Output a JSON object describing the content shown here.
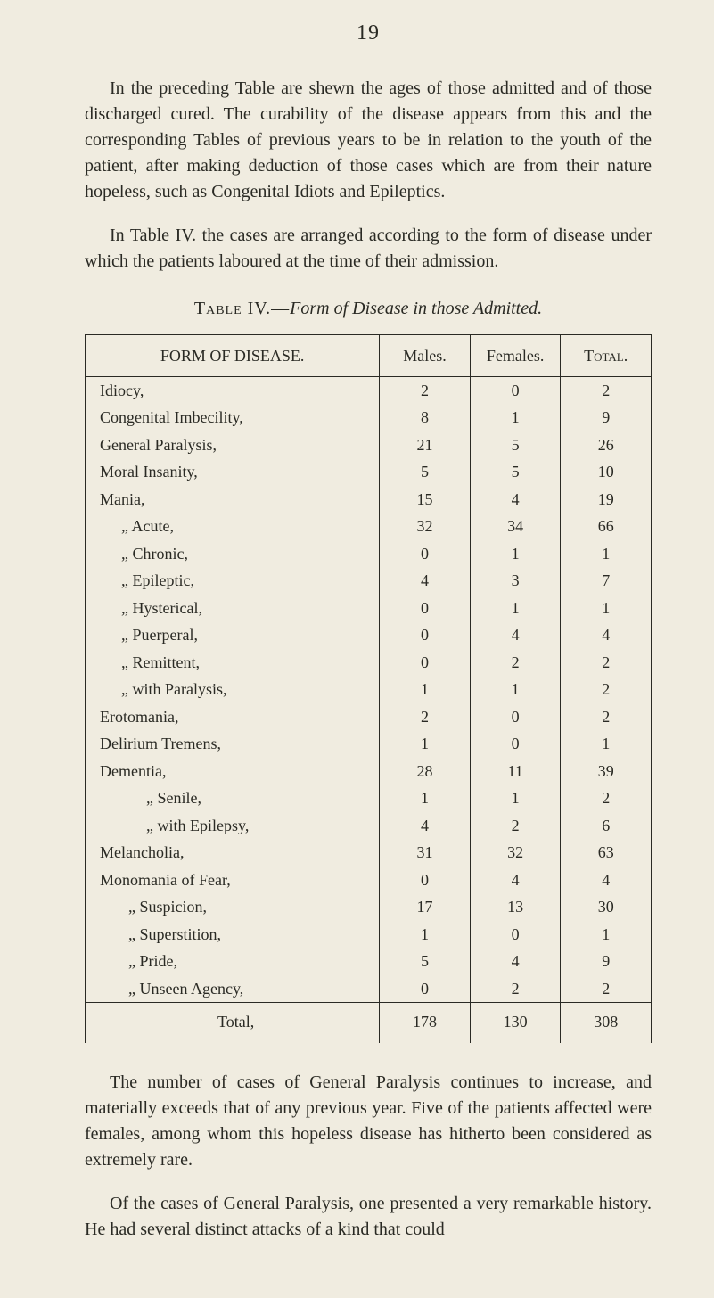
{
  "page_number": "19",
  "paragraphs": {
    "p1": "In the preceding Table are shewn the ages of those admitted and of those discharged cured. The curability of the disease appears from this and the corresponding Tables of previous years to be in relation to the youth of the patient, after making deduction of those cases which are from their nature hopeless, such as Congenital Idiots and Epileptics.",
    "p2": "In Table IV. the cases are arranged according to the form of disease under which the patients laboured at the time of their admission.",
    "p3": "The number of cases of General Paralysis continues to increase, and materially exceeds that of any previous year. Five of the patients affected were females, among whom this hopeless disease has hitherto been considered as extremely rare.",
    "p4": "Of the cases of General Paralysis, one presented a very remark­able history. He had several distinct attacks of a kind that could"
  },
  "table_title": {
    "leader": "Table IV.—",
    "rest": "Form of Disease in those Admitted."
  },
  "table": {
    "columns": {
      "form": "FORM OF DISEASE.",
      "males": "Males.",
      "females": "Females.",
      "total": "Total."
    },
    "rows": [
      {
        "label": "Idiocy,",
        "males": "2",
        "females": "0",
        "total": "2",
        "cls": ""
      },
      {
        "label": "Congenital Imbecility,",
        "males": "8",
        "females": "1",
        "total": "9",
        "cls": ""
      },
      {
        "label": "General Paralysis,",
        "males": "21",
        "females": "5",
        "total": "26",
        "cls": ""
      },
      {
        "label": "Moral Insanity,",
        "males": "5",
        "females": "5",
        "total": "10",
        "cls": ""
      },
      {
        "label": "Mania,",
        "males": "15",
        "females": "4",
        "total": "19",
        "cls": ""
      },
      {
        "label": "„  Acute,",
        "males": "32",
        "females": "34",
        "total": "66",
        "cls": "indent1"
      },
      {
        "label": "„  Chronic,",
        "males": "0",
        "females": "1",
        "total": "1",
        "cls": "indent1"
      },
      {
        "label": "„  Epileptic,",
        "males": "4",
        "females": "3",
        "total": "7",
        "cls": "indent1"
      },
      {
        "label": "„  Hysterical,",
        "males": "0",
        "females": "1",
        "total": "1",
        "cls": "indent1"
      },
      {
        "label": "„  Puerperal,",
        "males": "0",
        "females": "4",
        "total": "4",
        "cls": "indent1"
      },
      {
        "label": "„  Remittent,",
        "males": "0",
        "females": "2",
        "total": "2",
        "cls": "indent1"
      },
      {
        "label": "„  with Paralysis,",
        "males": "1",
        "females": "1",
        "total": "2",
        "cls": "indent1"
      },
      {
        "label": "Erotomania,",
        "males": "2",
        "females": "0",
        "total": "2",
        "cls": ""
      },
      {
        "label": "Delirium Tremens,",
        "males": "1",
        "females": "0",
        "total": "1",
        "cls": ""
      },
      {
        "label": "Dementia,",
        "males": "28",
        "females": "11",
        "total": "39",
        "cls": ""
      },
      {
        "label": "„  Senile,",
        "males": "1",
        "females": "1",
        "total": "2",
        "cls": "indent2"
      },
      {
        "label": "„  with Epilepsy,",
        "males": "4",
        "females": "2",
        "total": "6",
        "cls": "indent2"
      },
      {
        "label": "Melancholia,",
        "males": "31",
        "females": "32",
        "total": "63",
        "cls": ""
      },
      {
        "label": "Monomania of Fear,",
        "males": "0",
        "females": "4",
        "total": "4",
        "cls": ""
      },
      {
        "label": "„  Suspicion,",
        "males": "17",
        "females": "13",
        "total": "30",
        "cls": "monoindent"
      },
      {
        "label": "„  Superstition,",
        "males": "1",
        "females": "0",
        "total": "1",
        "cls": "monoindent"
      },
      {
        "label": "„  Pride,",
        "males": "5",
        "females": "4",
        "total": "9",
        "cls": "monoindent"
      },
      {
        "label": "„  Unseen Agency,",
        "males": "0",
        "females": "2",
        "total": "2",
        "cls": "monoindent"
      }
    ],
    "total_row": {
      "label": "Total,",
      "males": "178",
      "females": "130",
      "total": "308"
    }
  }
}
